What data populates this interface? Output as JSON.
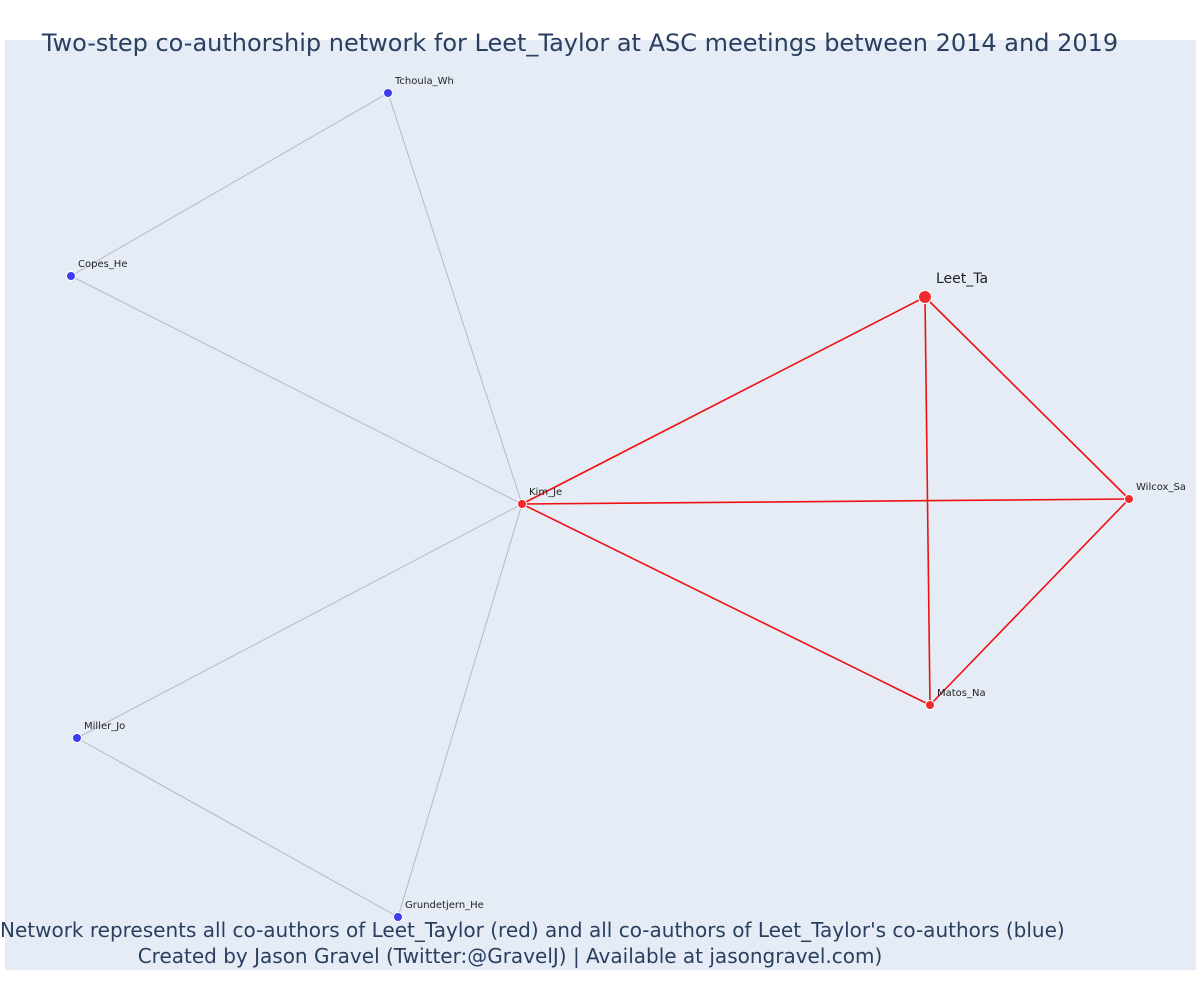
{
  "title": "Two-step co-authorship network for Leet_Taylor at ASC meetings between 2014 and 2019",
  "footer": {
    "line1": "Network represents all co-authors of Leet_Taylor (red) and all co-authors of Leet_Taylor's co-authors (blue)",
    "line2": "Created by Jason Gravel (Twitter:@GravelJ) | Available at jasongravel.com)"
  },
  "colors": {
    "background": "#e5ecf6",
    "text": "#2a3f5f",
    "focal": "#ef2b2b",
    "first_step": "#ee2a2a",
    "second_step": "#3d3df0",
    "first_step_edge": "#ee1111",
    "second_step_edge": "#b4b8c8"
  },
  "nodes": [
    {
      "id": "leet",
      "label": "Leet_Ta",
      "group": "focal"
    },
    {
      "id": "kim",
      "label": "Kim_Je",
      "group": "first_step"
    },
    {
      "id": "wilcox",
      "label": "Wilcox_Sa",
      "group": "first_step"
    },
    {
      "id": "matos",
      "label": "Matos_Na",
      "group": "first_step"
    },
    {
      "id": "tchoula",
      "label": "Tchoula_Wh",
      "group": "second_step"
    },
    {
      "id": "copes",
      "label": "Copes_He",
      "group": "second_step"
    },
    {
      "id": "miller",
      "label": "Miller_Jo",
      "group": "second_step"
    },
    {
      "id": "grundetjern",
      "label": "Grundetjern_He",
      "group": "second_step"
    }
  ],
  "edges": [
    {
      "source": "leet",
      "target": "kim",
      "type": "first_step"
    },
    {
      "source": "leet",
      "target": "wilcox",
      "type": "first_step"
    },
    {
      "source": "leet",
      "target": "matos",
      "type": "first_step"
    },
    {
      "source": "kim",
      "target": "wilcox",
      "type": "first_step"
    },
    {
      "source": "kim",
      "target": "matos",
      "type": "first_step"
    },
    {
      "source": "wilcox",
      "target": "matos",
      "type": "first_step"
    },
    {
      "source": "kim",
      "target": "tchoula",
      "type": "second_step"
    },
    {
      "source": "kim",
      "target": "copes",
      "type": "second_step"
    },
    {
      "source": "kim",
      "target": "miller",
      "type": "second_step"
    },
    {
      "source": "kim",
      "target": "grundetjern",
      "type": "second_step"
    },
    {
      "source": "tchoula",
      "target": "copes",
      "type": "second_step"
    },
    {
      "source": "miller",
      "target": "grundetjern",
      "type": "second_step"
    }
  ]
}
